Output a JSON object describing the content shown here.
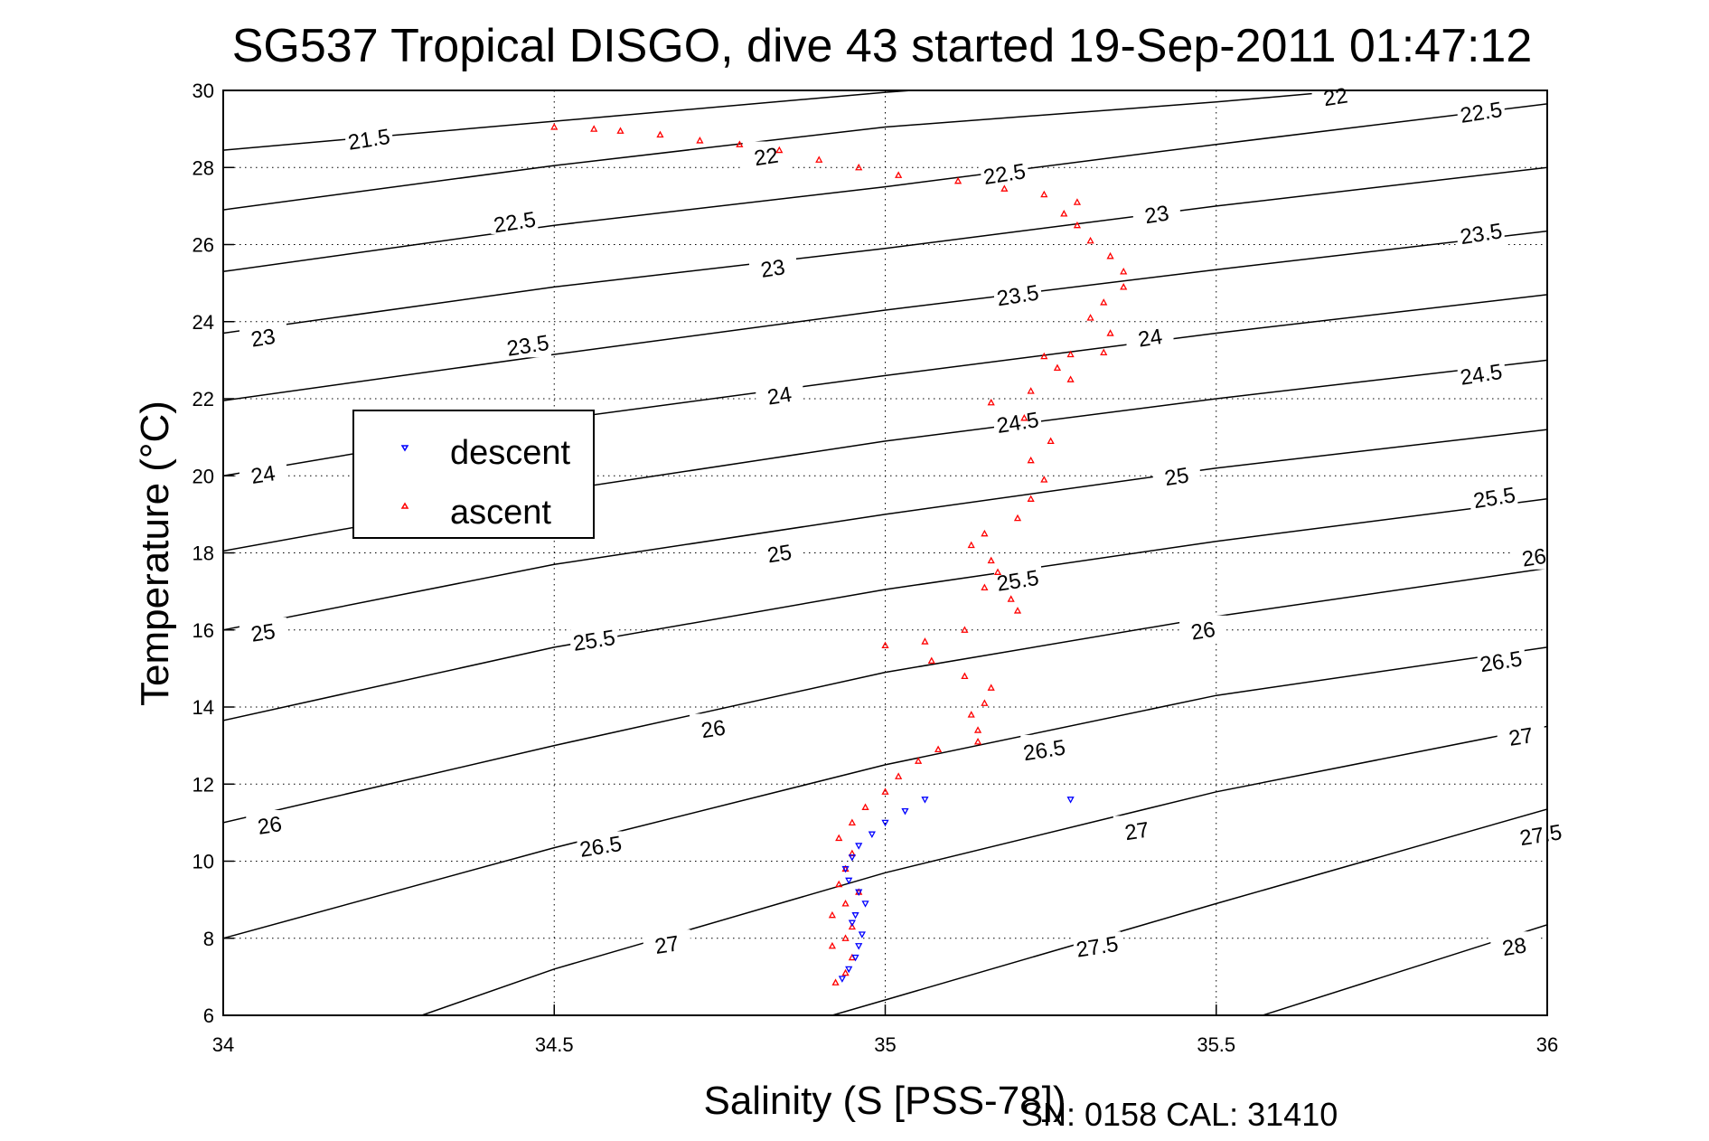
{
  "chart_data": {
    "type": "scatter",
    "title": "SG537 Tropical DISGO, dive 43 started 19-Sep-2011 01:47:12",
    "xlabel": "Salinity (S [PSS-78])",
    "ylabel": "Temperature (°C)",
    "xlim": [
      34,
      36
    ],
    "ylim": [
      6,
      30
    ],
    "xticks": [
      34,
      34.5,
      35,
      35.5,
      36
    ],
    "xtick_labels": [
      "34",
      "34.5",
      "35",
      "35.5",
      "36"
    ],
    "yticks": [
      6,
      8,
      10,
      12,
      14,
      16,
      18,
      20,
      22,
      24,
      26,
      28,
      30
    ],
    "ytick_labels": [
      "6",
      "8",
      "10",
      "12",
      "14",
      "16",
      "18",
      "20",
      "22",
      "24",
      "26",
      "28",
      "30"
    ],
    "grid": true,
    "legend": {
      "placement": "center-left",
      "entries": [
        {
          "label": "descent",
          "color": "#0000ff",
          "marker": "triangle-down"
        },
        {
          "label": "ascent",
          "color": "#ff0000",
          "marker": "triangle-up"
        }
      ]
    },
    "footnote": "SN: 0158  CAL: 31410",
    "series": [
      {
        "name": "descent",
        "color": "#0000ff",
        "marker": "triangle-down",
        "points": [
          [
            35.06,
            11.6
          ],
          [
            35.03,
            11.3
          ],
          [
            35.0,
            11.0
          ],
          [
            34.98,
            10.7
          ],
          [
            34.96,
            10.4
          ],
          [
            34.95,
            10.1
          ],
          [
            34.94,
            9.8
          ],
          [
            34.945,
            9.5
          ],
          [
            34.96,
            9.2
          ],
          [
            34.97,
            8.9
          ],
          [
            34.955,
            8.6
          ],
          [
            34.95,
            8.4
          ],
          [
            34.965,
            8.1
          ],
          [
            34.96,
            7.8
          ],
          [
            34.955,
            7.5
          ],
          [
            34.945,
            7.2
          ],
          [
            34.935,
            6.95
          ],
          [
            35.28,
            11.6
          ]
        ]
      },
      {
        "name": "ascent",
        "color": "#ff0000",
        "marker": "triangle-up",
        "points": [
          [
            34.5,
            29.05
          ],
          [
            34.56,
            29.0
          ],
          [
            34.6,
            28.95
          ],
          [
            34.66,
            28.85
          ],
          [
            34.72,
            28.7
          ],
          [
            34.78,
            28.6
          ],
          [
            34.84,
            28.45
          ],
          [
            34.9,
            28.2
          ],
          [
            34.96,
            28.0
          ],
          [
            35.02,
            27.8
          ],
          [
            35.11,
            27.65
          ],
          [
            35.18,
            27.45
          ],
          [
            35.24,
            27.3
          ],
          [
            35.29,
            27.1
          ],
          [
            35.27,
            26.8
          ],
          [
            35.29,
            26.5
          ],
          [
            35.31,
            26.1
          ],
          [
            35.34,
            25.7
          ],
          [
            35.36,
            25.3
          ],
          [
            35.36,
            24.9
          ],
          [
            35.33,
            24.5
          ],
          [
            35.31,
            24.1
          ],
          [
            35.34,
            23.7
          ],
          [
            35.33,
            23.2
          ],
          [
            35.28,
            23.15
          ],
          [
            35.24,
            23.1
          ],
          [
            35.26,
            22.8
          ],
          [
            35.28,
            22.5
          ],
          [
            35.22,
            22.2
          ],
          [
            35.16,
            21.9
          ],
          [
            35.21,
            21.5
          ],
          [
            35.25,
            20.9
          ],
          [
            35.22,
            20.4
          ],
          [
            35.24,
            19.9
          ],
          [
            35.22,
            19.4
          ],
          [
            35.2,
            18.9
          ],
          [
            35.15,
            18.5
          ],
          [
            35.13,
            18.2
          ],
          [
            35.16,
            17.8
          ],
          [
            35.17,
            17.5
          ],
          [
            35.15,
            17.1
          ],
          [
            35.19,
            16.8
          ],
          [
            35.2,
            16.5
          ],
          [
            35.12,
            16.0
          ],
          [
            35.06,
            15.7
          ],
          [
            35.0,
            15.6
          ],
          [
            35.07,
            15.2
          ],
          [
            35.12,
            14.8
          ],
          [
            35.16,
            14.5
          ],
          [
            35.15,
            14.1
          ],
          [
            35.13,
            13.8
          ],
          [
            35.14,
            13.4
          ],
          [
            35.14,
            13.1
          ],
          [
            35.08,
            12.9
          ],
          [
            35.05,
            12.6
          ],
          [
            35.02,
            12.2
          ],
          [
            35.0,
            11.8
          ],
          [
            34.97,
            11.4
          ],
          [
            34.95,
            11.0
          ],
          [
            34.93,
            10.6
          ],
          [
            34.95,
            10.2
          ],
          [
            34.94,
            9.8
          ],
          [
            34.93,
            9.4
          ],
          [
            34.96,
            9.2
          ],
          [
            34.94,
            8.9
          ],
          [
            34.92,
            8.6
          ],
          [
            34.95,
            8.3
          ],
          [
            34.94,
            8.0
          ],
          [
            34.92,
            7.8
          ],
          [
            34.95,
            7.5
          ],
          [
            34.94,
            7.1
          ],
          [
            34.925,
            6.85
          ]
        ]
      }
    ],
    "contours": [
      {
        "level": "21.5",
        "points": [
          [
            34.0,
            28.45
          ],
          [
            35.0,
            29.95
          ],
          [
            35.04,
            30.0
          ]
        ],
        "label_at": [
          34.22,
          28.75
        ]
      },
      {
        "level": "22",
        "points": [
          [
            34.0,
            26.9
          ],
          [
            34.5,
            28.05
          ],
          [
            35.0,
            29.05
          ],
          [
            35.5,
            29.7
          ],
          [
            35.7,
            30.0
          ]
        ],
        "label_at": [
          34.82,
          28.3
        ]
      },
      {
        "level": "22",
        "points": [],
        "label_at": [
          35.68,
          29.85
        ]
      },
      {
        "level": "22.5",
        "points": [
          [
            34.0,
            25.3
          ],
          [
            34.5,
            26.5
          ],
          [
            35.0,
            27.5
          ],
          [
            35.5,
            28.6
          ],
          [
            36.0,
            29.65
          ]
        ],
        "label_at": [
          34.44,
          26.6
        ]
      },
      {
        "level": "22.5",
        "points": [],
        "label_at": [
          35.18,
          27.85
        ]
      },
      {
        "level": "22.5",
        "points": [],
        "label_at": [
          35.9,
          29.45
        ]
      },
      {
        "level": "23",
        "points": [
          [
            34.0,
            23.7
          ],
          [
            34.5,
            24.9
          ],
          [
            35.0,
            25.9
          ],
          [
            35.5,
            27.0
          ],
          [
            36.0,
            28.0
          ]
        ],
        "label_at": [
          34.06,
          23.6
        ]
      },
      {
        "level": "23",
        "points": [],
        "label_at": [
          34.83,
          25.4
        ]
      },
      {
        "level": "23",
        "points": [],
        "label_at": [
          35.41,
          26.8
        ]
      },
      {
        "level": "23.5",
        "points": [
          [
            34.0,
            21.95
          ],
          [
            34.5,
            23.15
          ],
          [
            35.0,
            24.3
          ],
          [
            35.5,
            25.35
          ],
          [
            36.0,
            26.35
          ]
        ],
        "label_at": [
          34.46,
          23.4
        ]
      },
      {
        "level": "23.5",
        "points": [],
        "label_at": [
          35.2,
          24.7
        ]
      },
      {
        "level": "23.5",
        "points": [],
        "label_at": [
          35.9,
          26.3
        ]
      },
      {
        "level": "24",
        "points": [
          [
            34.0,
            20.0
          ],
          [
            34.5,
            21.45
          ],
          [
            35.0,
            22.6
          ],
          [
            35.5,
            23.7
          ],
          [
            36.0,
            24.7
          ]
        ],
        "label_at": [
          34.06,
          20.05
        ]
      },
      {
        "level": "24",
        "points": [],
        "label_at": [
          34.84,
          22.1
        ]
      },
      {
        "level": "24",
        "points": [],
        "label_at": [
          35.4,
          23.6
        ]
      },
      {
        "level": "24.5",
        "points": [
          [
            34.0,
            18.05
          ],
          [
            34.5,
            19.6
          ],
          [
            35.0,
            20.9
          ],
          [
            35.5,
            22.0
          ],
          [
            36.0,
            23.0
          ]
        ],
        "label_at": [
          35.2,
          21.4
        ]
      },
      {
        "level": "24.5",
        "points": [],
        "label_at": [
          35.9,
          22.65
        ]
      },
      {
        "level": "25",
        "points": [
          [
            34.0,
            16.0
          ],
          [
            34.5,
            17.7
          ],
          [
            35.0,
            19.0
          ],
          [
            35.5,
            20.2
          ],
          [
            36.0,
            21.2
          ]
        ],
        "label_at": [
          34.06,
          15.95
        ]
      },
      {
        "level": "25",
        "points": [],
        "label_at": [
          34.84,
          18.0
        ]
      },
      {
        "level": "25",
        "points": [],
        "label_at": [
          35.44,
          20.0
        ]
      },
      {
        "level": "25.5",
        "points": [
          [
            34.0,
            13.65
          ],
          [
            34.5,
            15.55
          ],
          [
            35.0,
            17.05
          ],
          [
            35.5,
            18.3
          ],
          [
            36.0,
            19.4
          ]
        ],
        "label_at": [
          34.56,
          15.75
        ]
      },
      {
        "level": "25.5",
        "points": [],
        "label_at": [
          35.2,
          17.3
        ]
      },
      {
        "level": "25.5",
        "points": [],
        "label_at": [
          35.92,
          19.45
        ]
      },
      {
        "level": "26",
        "points": [
          [
            34.0,
            11.0
          ],
          [
            34.5,
            13.0
          ],
          [
            35.0,
            14.9
          ],
          [
            35.5,
            16.35
          ],
          [
            36.0,
            17.6
          ]
        ],
        "label_at": [
          34.07,
          10.95
        ]
      },
      {
        "level": "26",
        "points": [],
        "label_at": [
          34.74,
          13.45
        ]
      },
      {
        "level": "26",
        "points": [],
        "label_at": [
          35.48,
          16.0
        ]
      },
      {
        "level": "26",
        "points": [],
        "label_at": [
          35.98,
          17.9
        ]
      },
      {
        "level": "26.5",
        "points": [
          [
            34.0,
            8.0
          ],
          [
            34.5,
            10.35
          ],
          [
            35.0,
            12.5
          ],
          [
            35.5,
            14.3
          ],
          [
            36.0,
            15.55
          ]
        ],
        "label_at": [
          34.57,
          10.4
        ]
      },
      {
        "level": "26.5",
        "points": [],
        "label_at": [
          35.24,
          12.9
        ]
      },
      {
        "level": "26.5",
        "points": [],
        "label_at": [
          35.93,
          15.2
        ]
      },
      {
        "level": "27",
        "points": [
          [
            34.3,
            6.0
          ],
          [
            34.5,
            7.2
          ],
          [
            35.0,
            9.7
          ],
          [
            35.5,
            11.8
          ],
          [
            36.0,
            13.5
          ]
        ],
        "label_at": [
          34.67,
          7.85
        ]
      },
      {
        "level": "27",
        "points": [],
        "label_at": [
          35.38,
          10.8
        ]
      },
      {
        "level": "27",
        "points": [],
        "label_at": [
          35.96,
          13.25
        ]
      },
      {
        "level": "27.5",
        "points": [
          [
            34.92,
            6.0
          ],
          [
            35.0,
            6.4
          ],
          [
            35.5,
            8.9
          ],
          [
            36.0,
            11.35
          ]
        ],
        "label_at": [
          35.32,
          7.8
        ]
      },
      {
        "level": "27.5",
        "points": [],
        "label_at": [
          35.99,
          10.7
        ]
      },
      {
        "level": "28",
        "points": [
          [
            35.57,
            6.0
          ],
          [
            36.0,
            8.35
          ]
        ],
        "label_at": [
          35.95,
          7.8
        ]
      }
    ]
  }
}
